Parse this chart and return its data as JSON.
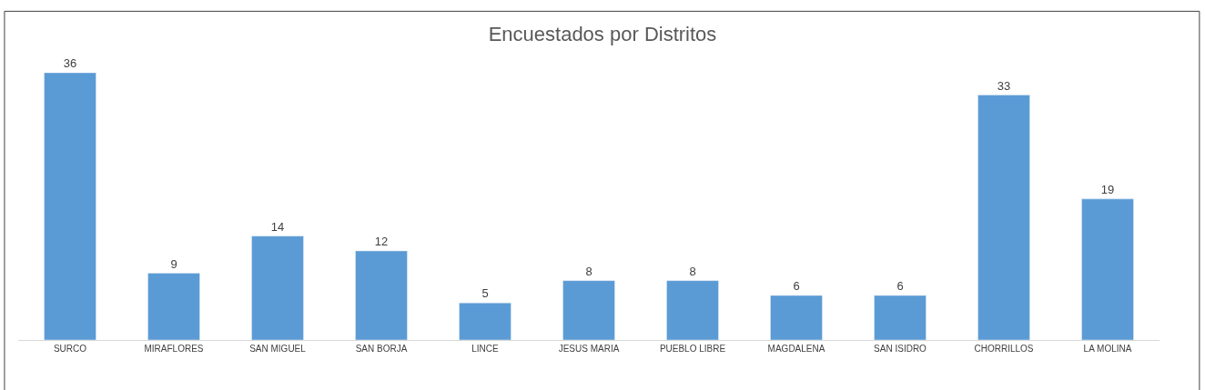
{
  "chart_data": {
    "type": "bar",
    "title": "Encuestados por Distritos",
    "categories": [
      "SURCO",
      "MIRAFLORES",
      "SAN MIGUEL",
      "SAN BORJA",
      "LINCE",
      "JESUS MARIA",
      "PUEBLO LIBRE",
      "MAGDALENA",
      "SAN ISIDRO",
      "CHORRILLOS",
      "LA MOLINA"
    ],
    "values": [
      36,
      9,
      14,
      12,
      5,
      8,
      8,
      6,
      6,
      33,
      19
    ],
    "color": "#5b9bd5",
    "data_labels": true
  }
}
